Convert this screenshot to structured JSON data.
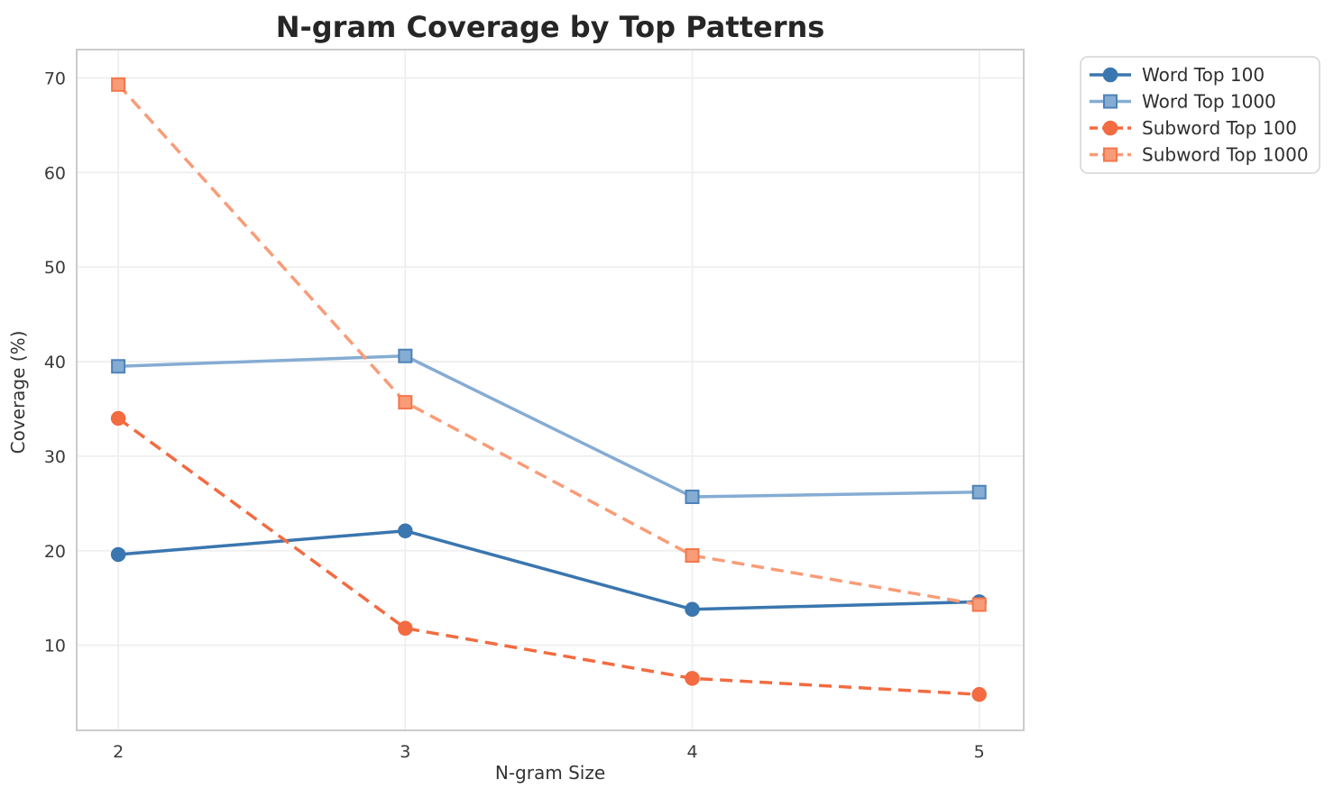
{
  "title": "N-gram Coverage by Top Patterns",
  "chart_data": {
    "type": "line",
    "title": "N-gram Coverage by Top Patterns",
    "xlabel": "N-gram Size",
    "ylabel": "Coverage (%)",
    "x": [
      2,
      3,
      4,
      5
    ],
    "xtick_labels": [
      "2",
      "3",
      "4",
      "5"
    ],
    "yticks": [
      10,
      20,
      30,
      40,
      50,
      60,
      70
    ],
    "xlim": [
      1.855,
      5.155
    ],
    "ylim": [
      1,
      73
    ],
    "grid": true,
    "grid_color": "#efefef",
    "spine_color": "#cccccc",
    "background_color": "#ffffff",
    "legend_position": "outside-upper-right",
    "series": [
      {
        "name": "Word Top 100",
        "values": [
          19.6,
          22.1,
          13.8,
          14.6
        ],
        "color": "#3a76af",
        "edge_color": "#3a76af",
        "marker": "circle",
        "line_style": "solid"
      },
      {
        "name": "Word Top 1000",
        "values": [
          39.5,
          40.6,
          25.7,
          26.2
        ],
        "color": "#85acd3",
        "edge_color": "#4d82b8",
        "marker": "square",
        "line_style": "solid"
      },
      {
        "name": "Subword Top 100",
        "values": [
          34.0,
          11.8,
          6.5,
          4.8
        ],
        "color": "#f26b41",
        "edge_color": "#f26b41",
        "marker": "circle",
        "line_style": "dashed"
      },
      {
        "name": "Subword Top 1000",
        "values": [
          69.3,
          35.7,
          19.5,
          14.3
        ],
        "color": "#f89c78",
        "edge_color": "#f3764b",
        "marker": "square",
        "line_style": "dashed"
      }
    ]
  }
}
